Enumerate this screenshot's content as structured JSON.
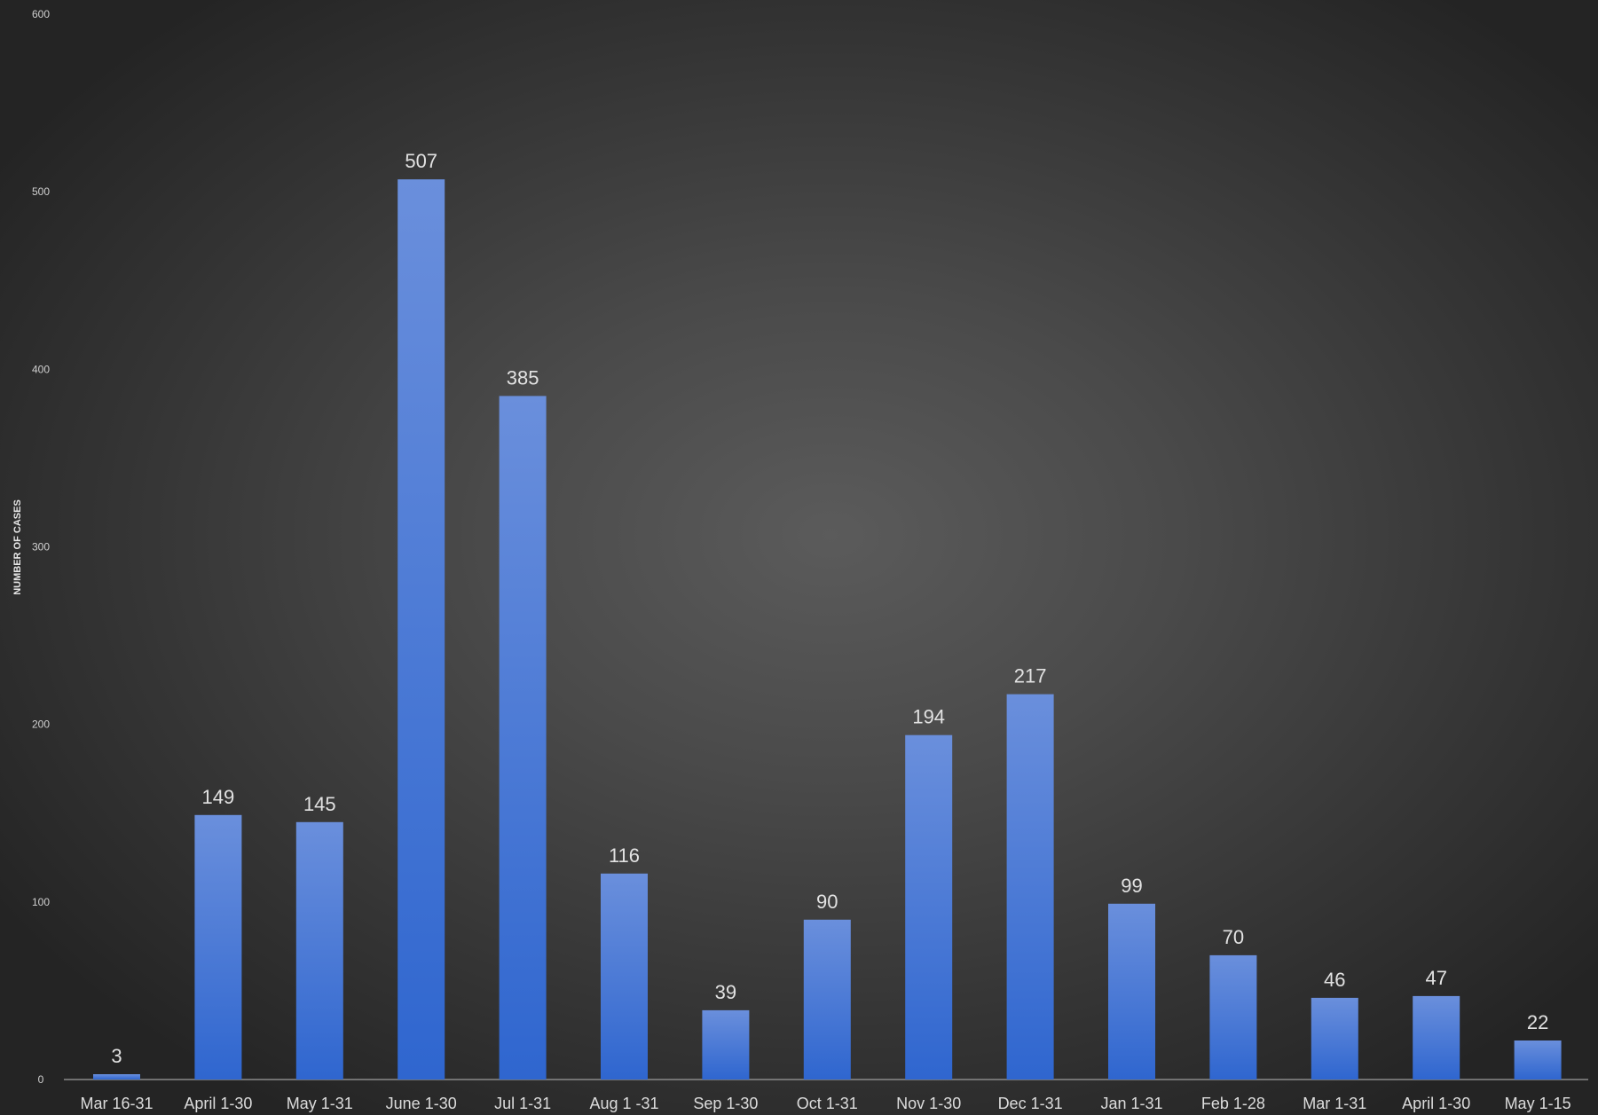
{
  "chart_data": {
    "type": "bar",
    "title": "",
    "xlabel": "",
    "ylabel": "NUMBER OF CASES",
    "ylim": [
      0,
      600
    ],
    "yticks": [
      0,
      100,
      200,
      300,
      400,
      500,
      600
    ],
    "grid": false,
    "legend": "none",
    "categories": [
      "Mar 16-31",
      "April 1-30",
      "May 1-31",
      "June 1-30",
      "Jul 1-31",
      "Aug 1 -31",
      "Sep 1-30",
      "Oct 1-31",
      "Nov 1-30",
      "Dec 1-31",
      "Jan 1-31",
      "Feb 1-28",
      "Mar 1-31",
      "April 1-30",
      "May 1-15"
    ],
    "values": [
      3,
      149,
      145,
      507,
      385,
      116,
      39,
      90,
      194,
      217,
      99,
      70,
      46,
      47,
      22
    ],
    "colors": {
      "bar_top": "#6a8fdc",
      "bar_bottom": "#2f66cf",
      "axis_line": "#8a8a8a"
    }
  }
}
